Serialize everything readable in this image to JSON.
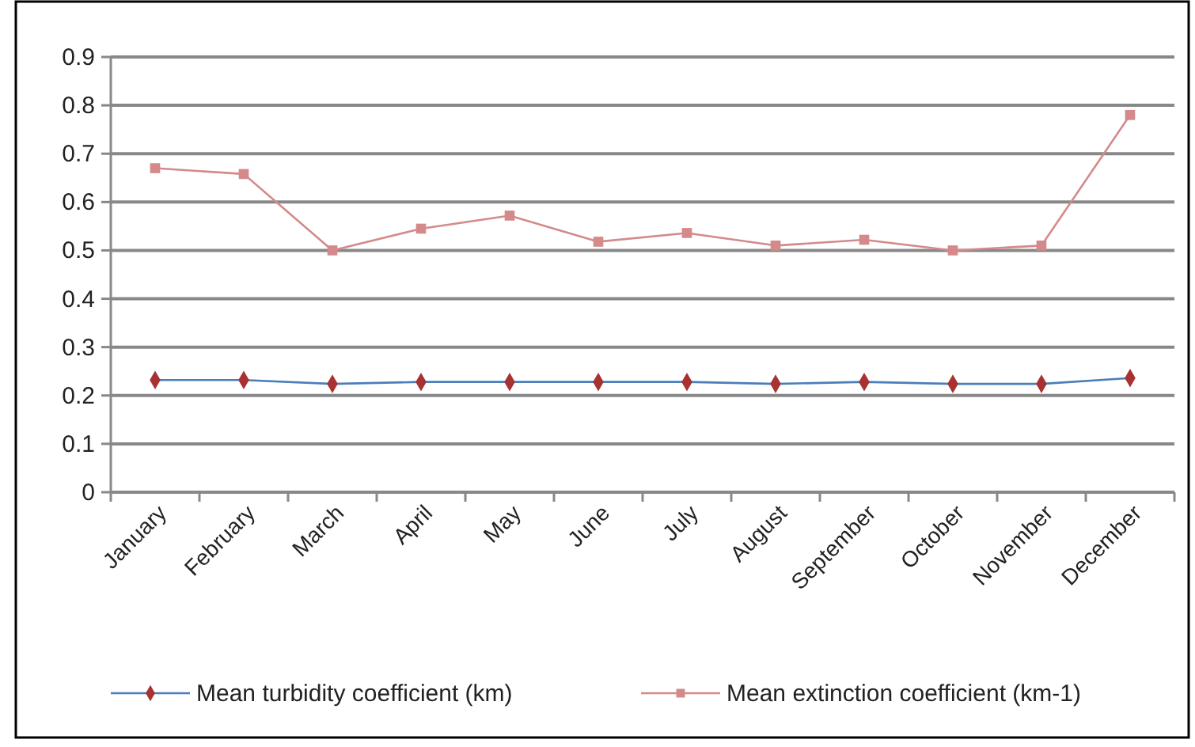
{
  "chart_data": {
    "type": "line",
    "categories": [
      "January",
      "February",
      "March",
      "April",
      "May",
      "June",
      "July",
      "August",
      "September",
      "October",
      "November",
      "December"
    ],
    "series": [
      {
        "name": "Mean turbidity coefficient (km)",
        "color": "#4a7ebb",
        "marker": "diamond",
        "colors": [
          "#a83232",
          "#a83232",
          "#a83232",
          "#a83232",
          "#a83232",
          "#a83232",
          "#a83232",
          "#a83232",
          "#a83232",
          "#a83232",
          "#a83232",
          "#a83232"
        ],
        "values": [
          0.232,
          0.232,
          0.224,
          0.228,
          0.228,
          0.228,
          0.228,
          0.224,
          0.228,
          0.224,
          0.224,
          0.236
        ]
      },
      {
        "name": "Mean extinction coefficient (km-1)",
        "color": "#d48a8a",
        "marker": "square",
        "values": [
          0.67,
          0.658,
          0.5,
          0.545,
          0.572,
          0.518,
          0.536,
          0.51,
          0.522,
          0.5,
          0.51,
          0.78
        ]
      }
    ],
    "ylim": [
      0,
      0.9
    ],
    "yticks": [
      0,
      0.1,
      0.2,
      0.3,
      0.4,
      0.5,
      0.6,
      0.7,
      0.8,
      0.9
    ],
    "grid": "y",
    "legend": "bottom"
  }
}
